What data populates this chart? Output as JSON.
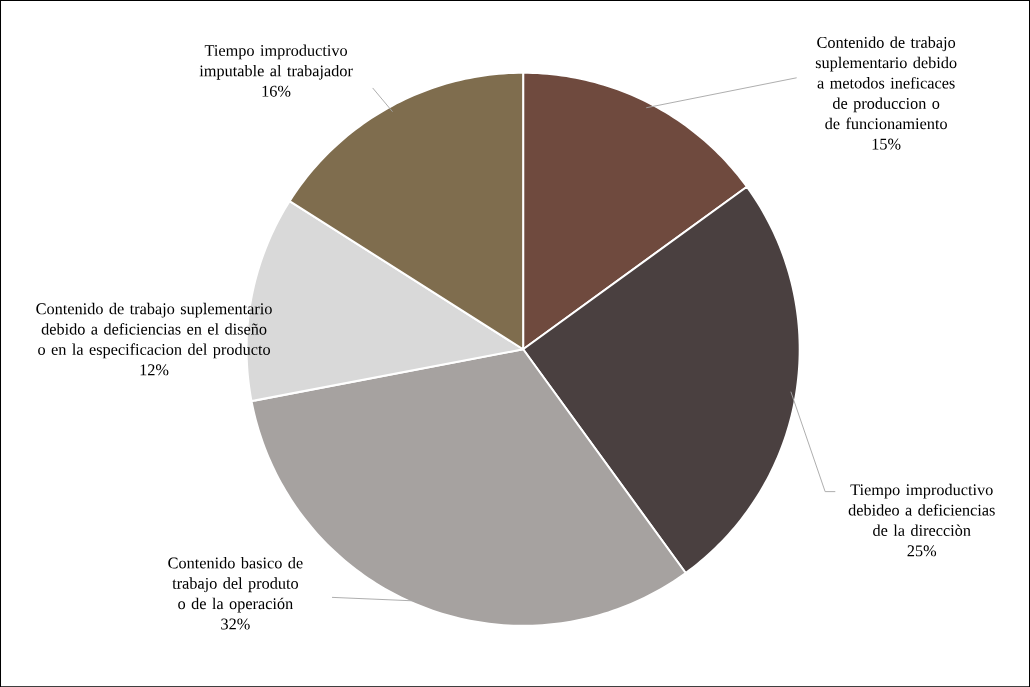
{
  "chart_data": {
    "type": "pie",
    "categories": [
      "Contenido de trabajo suplementario debido a metodos ineficaces de produccion o de funcionamiento",
      "Tiempo improductivo debideo a deficiencias de la direcciòn",
      "Contenido basico de trabajo del produto o de la operación",
      "Contenido de trabajo suplementario debido a deficiencias en el diseño o en la especificacion del producto",
      "Tiempo improductivo imputable al trabajador"
    ],
    "values": [
      15,
      25,
      32,
      12,
      16
    ],
    "value_labels": [
      "15%",
      "25%",
      "32%",
      "12%",
      "16%"
    ],
    "colors": [
      "#6f4a3e",
      "#4a4040",
      "#a6a2a0",
      "#d9d9d9",
      "#7f6d4e"
    ]
  }
}
